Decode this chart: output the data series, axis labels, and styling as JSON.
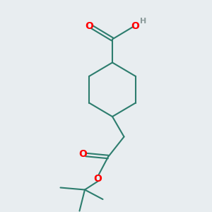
{
  "bg_color": "#e8edf0",
  "bond_color": "#2d7d6e",
  "heteroatom_color": "#ff0000",
  "H_color": "#8a9a9a",
  "bond_width": 1.5,
  "font_size_O": 10,
  "font_size_H": 8,
  "figsize": [
    3.0,
    3.0
  ],
  "dpi": 100,
  "xlim": [
    0,
    10
  ],
  "ylim": [
    0,
    10
  ]
}
